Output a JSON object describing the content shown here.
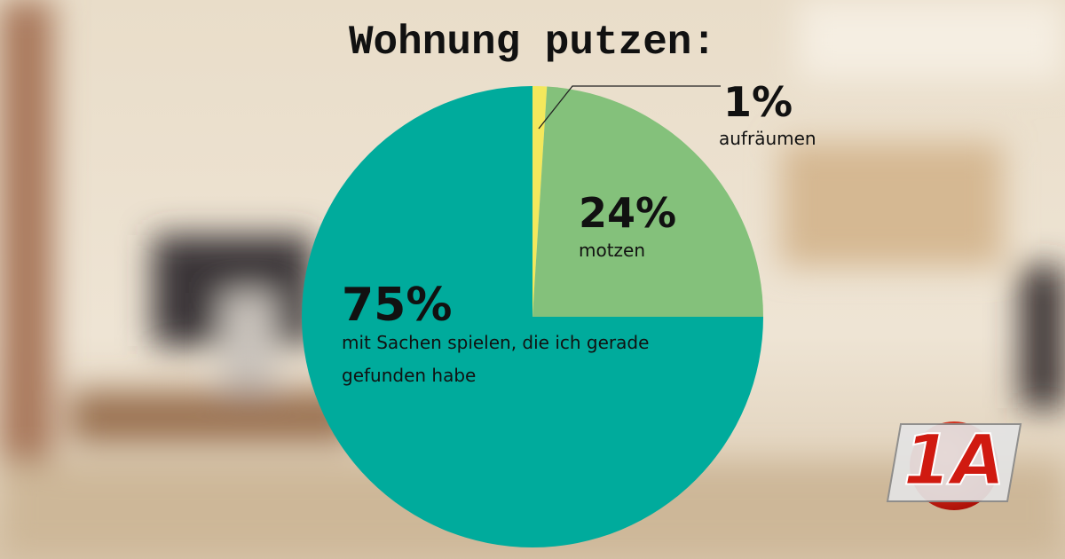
{
  "chart_data": {
    "type": "pie",
    "title": "Wohnung putzen:",
    "categories": [
      "aufräumen",
      "motzen",
      "mit Sachen spielen, die ich gerade gefunden habe"
    ],
    "values": [
      1,
      24,
      75
    ],
    "value_labels": [
      "1%",
      "24%",
      "75%"
    ],
    "colors": [
      "#f3e85c",
      "#84c17b",
      "#00ab9c"
    ]
  },
  "logo": "1A"
}
